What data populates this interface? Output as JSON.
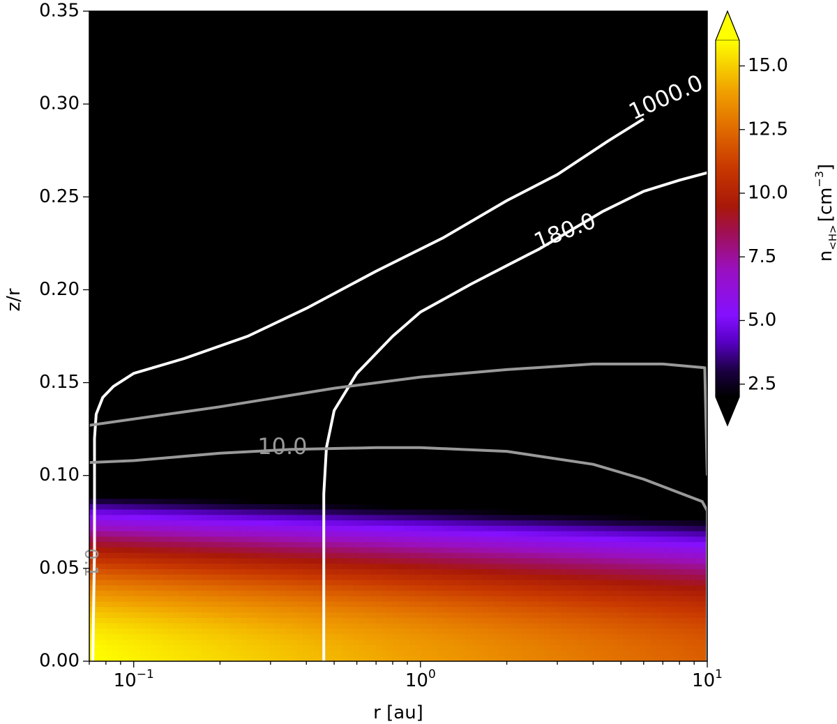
{
  "chart_data": {
    "type": "heatmap",
    "xlabel": "r [au]",
    "ylabel": "z/r",
    "xscale": "log",
    "xlim": [
      0.07,
      10
    ],
    "ylim": [
      0.0,
      0.35
    ],
    "x_tick_labels": [
      {
        "value": 0.1,
        "base": "10",
        "exp": "−1"
      },
      {
        "value": 1,
        "base": "10",
        "exp": "0"
      },
      {
        "value": 10,
        "base": "10",
        "exp": "1"
      }
    ],
    "y_ticks": [
      0.0,
      0.05,
      0.1,
      0.15,
      0.2,
      0.25,
      0.3,
      0.35
    ],
    "y_tick_labels": [
      "0.00",
      "0.05",
      "0.10",
      "0.15",
      "0.20",
      "0.25",
      "0.30",
      "0.35"
    ],
    "colorbar": {
      "label_main": "n",
      "label_sub": "<H>",
      "label_unit": "[cm",
      "label_unit_exp": "−3",
      "label_close": "]",
      "range": [
        2.0,
        16.0
      ],
      "extend": "both",
      "ticks": [
        2.5,
        5.0,
        7.5,
        10.0,
        12.5,
        15.0
      ],
      "tick_labels": [
        "2.5",
        "5.0",
        "7.5",
        "10.0",
        "12.5",
        "15.0"
      ],
      "cmap": "gnuplot",
      "colors": [
        {
          "v": 2.0,
          "c": "#000000"
        },
        {
          "v": 3.0,
          "c": "#1a0040"
        },
        {
          "v": 4.2,
          "c": "#5a00c8"
        },
        {
          "v": 5.2,
          "c": "#8410ff"
        },
        {
          "v": 7.0,
          "c": "#9a10c0"
        },
        {
          "v": 8.5,
          "c": "#a01050"
        },
        {
          "v": 9.5,
          "c": "#a81808"
        },
        {
          "v": 11.0,
          "c": "#c83800"
        },
        {
          "v": 12.5,
          "c": "#e06a00"
        },
        {
          "v": 14.0,
          "c": "#f0a000"
        },
        {
          "v": 15.2,
          "c": "#f8d800"
        },
        {
          "v": 16.0,
          "c": "#ffff00"
        }
      ]
    },
    "density_field": "log n ≈ 16.0 − 1.8·log10(r/0.07) − 1750·(z/r)²",
    "contours": [
      {
        "name": "1000.0",
        "color": "#ffffff",
        "label_text": "1000.0",
        "points": [
          [
            0.072,
            0.0
          ],
          [
            0.073,
            0.06
          ],
          [
            0.073,
            0.12
          ],
          [
            0.074,
            0.133
          ],
          [
            0.078,
            0.142
          ],
          [
            0.085,
            0.148
          ],
          [
            0.1,
            0.155
          ],
          [
            0.15,
            0.163
          ],
          [
            0.25,
            0.175
          ],
          [
            0.4,
            0.19
          ],
          [
            0.7,
            0.21
          ],
          [
            1.2,
            0.228
          ],
          [
            2.0,
            0.248
          ],
          [
            3.0,
            0.262
          ],
          [
            4.5,
            0.28
          ],
          [
            6.0,
            0.292
          ]
        ]
      },
      {
        "name": "180.0",
        "color": "#ffffff",
        "label_text": "180.0",
        "points": [
          [
            0.46,
            0.0
          ],
          [
            0.46,
            0.09
          ],
          [
            0.47,
            0.115
          ],
          [
            0.5,
            0.135
          ],
          [
            0.6,
            0.155
          ],
          [
            0.8,
            0.175
          ],
          [
            1.0,
            0.188
          ],
          [
            1.5,
            0.203
          ],
          [
            2.0,
            0.213
          ],
          [
            2.6,
            0.222
          ],
          [
            4.3,
            0.242
          ],
          [
            6.0,
            0.253
          ],
          [
            8.0,
            0.259
          ],
          [
            10.0,
            0.263
          ]
        ]
      },
      {
        "name": "10.0",
        "color": "#999999",
        "label_text": "10.0",
        "points": [
          [
            0.07,
            0.107
          ],
          [
            0.1,
            0.108
          ],
          [
            0.2,
            0.112
          ],
          [
            0.35,
            0.114
          ],
          [
            0.7,
            0.115
          ],
          [
            1.0,
            0.115
          ],
          [
            2.0,
            0.113
          ],
          [
            4.0,
            0.106
          ],
          [
            6.0,
            0.098
          ],
          [
            9.6,
            0.086
          ],
          [
            10.0,
            0.081
          ],
          [
            10.0,
            0.0
          ]
        ]
      },
      {
        "name": "gray-upper",
        "color": "#999999",
        "label_text": "",
        "points": [
          [
            0.07,
            0.127
          ],
          [
            0.2,
            0.137
          ],
          [
            0.5,
            0.147
          ],
          [
            1.0,
            0.153
          ],
          [
            2.0,
            0.157
          ],
          [
            4.0,
            0.16
          ],
          [
            7.0,
            0.16
          ],
          [
            9.8,
            0.158
          ],
          [
            10.0,
            0.1
          ]
        ]
      },
      {
        "name": "0.1",
        "color": "#999999",
        "label_text": "0.1",
        "points": []
      }
    ]
  }
}
